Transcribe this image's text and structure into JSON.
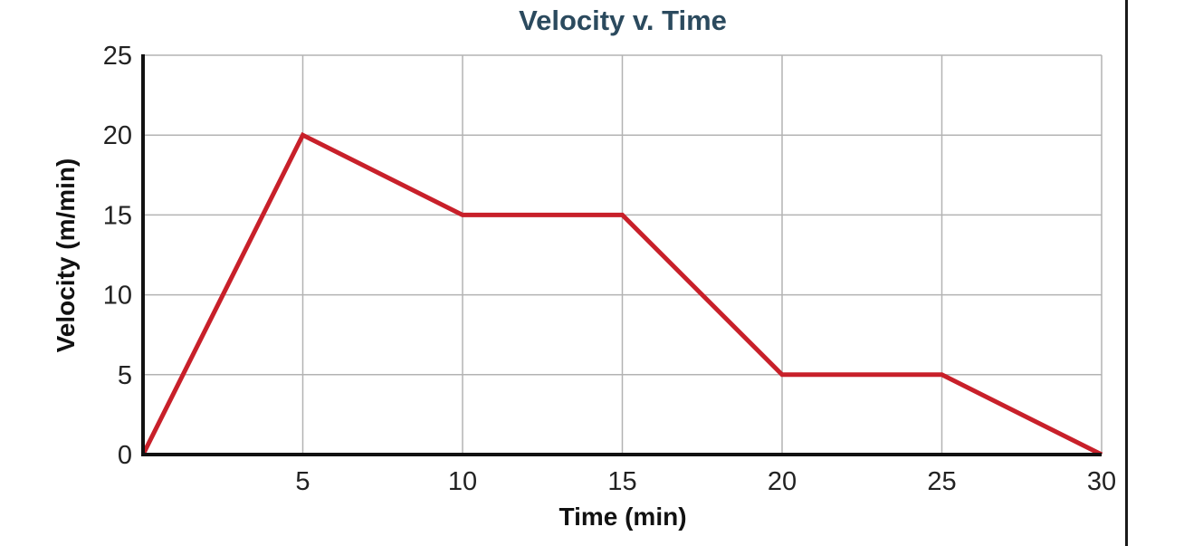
{
  "chart_data": {
    "type": "line",
    "title": "Velocity v. Time",
    "xlabel": "Time (min)",
    "ylabel": "Velocity (m/min)",
    "xlim": [
      0,
      30
    ],
    "ylim": [
      0,
      25
    ],
    "x_ticks": [
      5,
      10,
      15,
      20,
      25,
      30
    ],
    "x_tick_labels": [
      "5",
      "10",
      "15",
      "20",
      "25",
      "30"
    ],
    "y_ticks": [
      0,
      5,
      10,
      15,
      20,
      25
    ],
    "y_tick_labels": [
      "0",
      "5",
      "10",
      "15",
      "20",
      "25"
    ],
    "grid": true,
    "legend": "none",
    "series": [
      {
        "name": "Velocity",
        "color": "#c8202a",
        "x": [
          0,
          5,
          10,
          15,
          20,
          25,
          30
        ],
        "y": [
          0,
          20,
          15,
          15,
          5,
          5,
          0
        ]
      }
    ]
  }
}
